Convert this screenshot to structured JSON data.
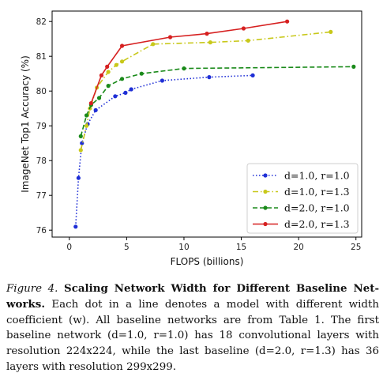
{
  "chart_data": {
    "type": "line",
    "title": "",
    "xlabel": "FLOPS (billions)",
    "ylabel": "ImageNet Top1 Accuracy (%)",
    "xlim": [
      -1.5,
      25.5
    ],
    "ylim": [
      75.8,
      82.3
    ],
    "xticks": [
      0,
      5,
      10,
      15,
      20,
      25
    ],
    "yticks": [
      76,
      77,
      78,
      79,
      80,
      81,
      82
    ],
    "grid": false,
    "legend_position": "lower-right",
    "series": [
      {
        "name": "d=1.0, r=1.0",
        "color": "#1f2fd6",
        "dash": "dotted",
        "x": [
          0.55,
          0.8,
          1.1,
          1.6,
          2.3,
          4.0,
          4.9,
          5.4,
          8.1,
          12.2,
          16.0
        ],
        "y": [
          76.1,
          77.5,
          78.5,
          79.05,
          79.45,
          79.85,
          79.95,
          80.05,
          80.3,
          80.4,
          80.45
        ]
      },
      {
        "name": "d=1.0, r=1.3",
        "color": "#c8c81a",
        "dash": "dashdot",
        "x": [
          1.0,
          1.5,
          1.8,
          2.4,
          3.4,
          4.1,
          4.6,
          7.3,
          12.3,
          15.6,
          22.8
        ],
        "y": [
          78.3,
          79.0,
          79.5,
          80.1,
          80.55,
          80.75,
          80.85,
          81.35,
          81.4,
          81.45,
          81.7
        ]
      },
      {
        "name": "d=2.0, r=1.0",
        "color": "#1a8a1a",
        "dash": "dashed",
        "x": [
          1.0,
          1.5,
          1.9,
          2.6,
          3.4,
          4.6,
          6.3,
          10.0,
          24.8
        ],
        "y": [
          78.7,
          79.3,
          79.6,
          79.8,
          80.15,
          80.35,
          80.5,
          80.65,
          80.7
        ]
      },
      {
        "name": "d=2.0, r=1.3",
        "color": "#d62020",
        "dash": "solid",
        "x": [
          1.9,
          2.8,
          3.3,
          4.6,
          8.8,
          12.0,
          15.2,
          19.0
        ],
        "y": [
          79.65,
          80.45,
          80.7,
          81.3,
          81.55,
          81.65,
          81.8,
          82.0
        ]
      }
    ]
  },
  "caption": {
    "figure_label": "Figure 4.",
    "bold_title": "Scaling Network Width for Different Baseline Net-works.",
    "body": "Each dot in a line denotes a model with different width coefficient (w). All baseline networks are from Table 1. The first baseline network (d=1.0, r=1.0) has 18 convolutional layers with resolution 224x224, while the last baseline (d=2.0, r=1.3) has 36 layers with resolution 299x299."
  }
}
